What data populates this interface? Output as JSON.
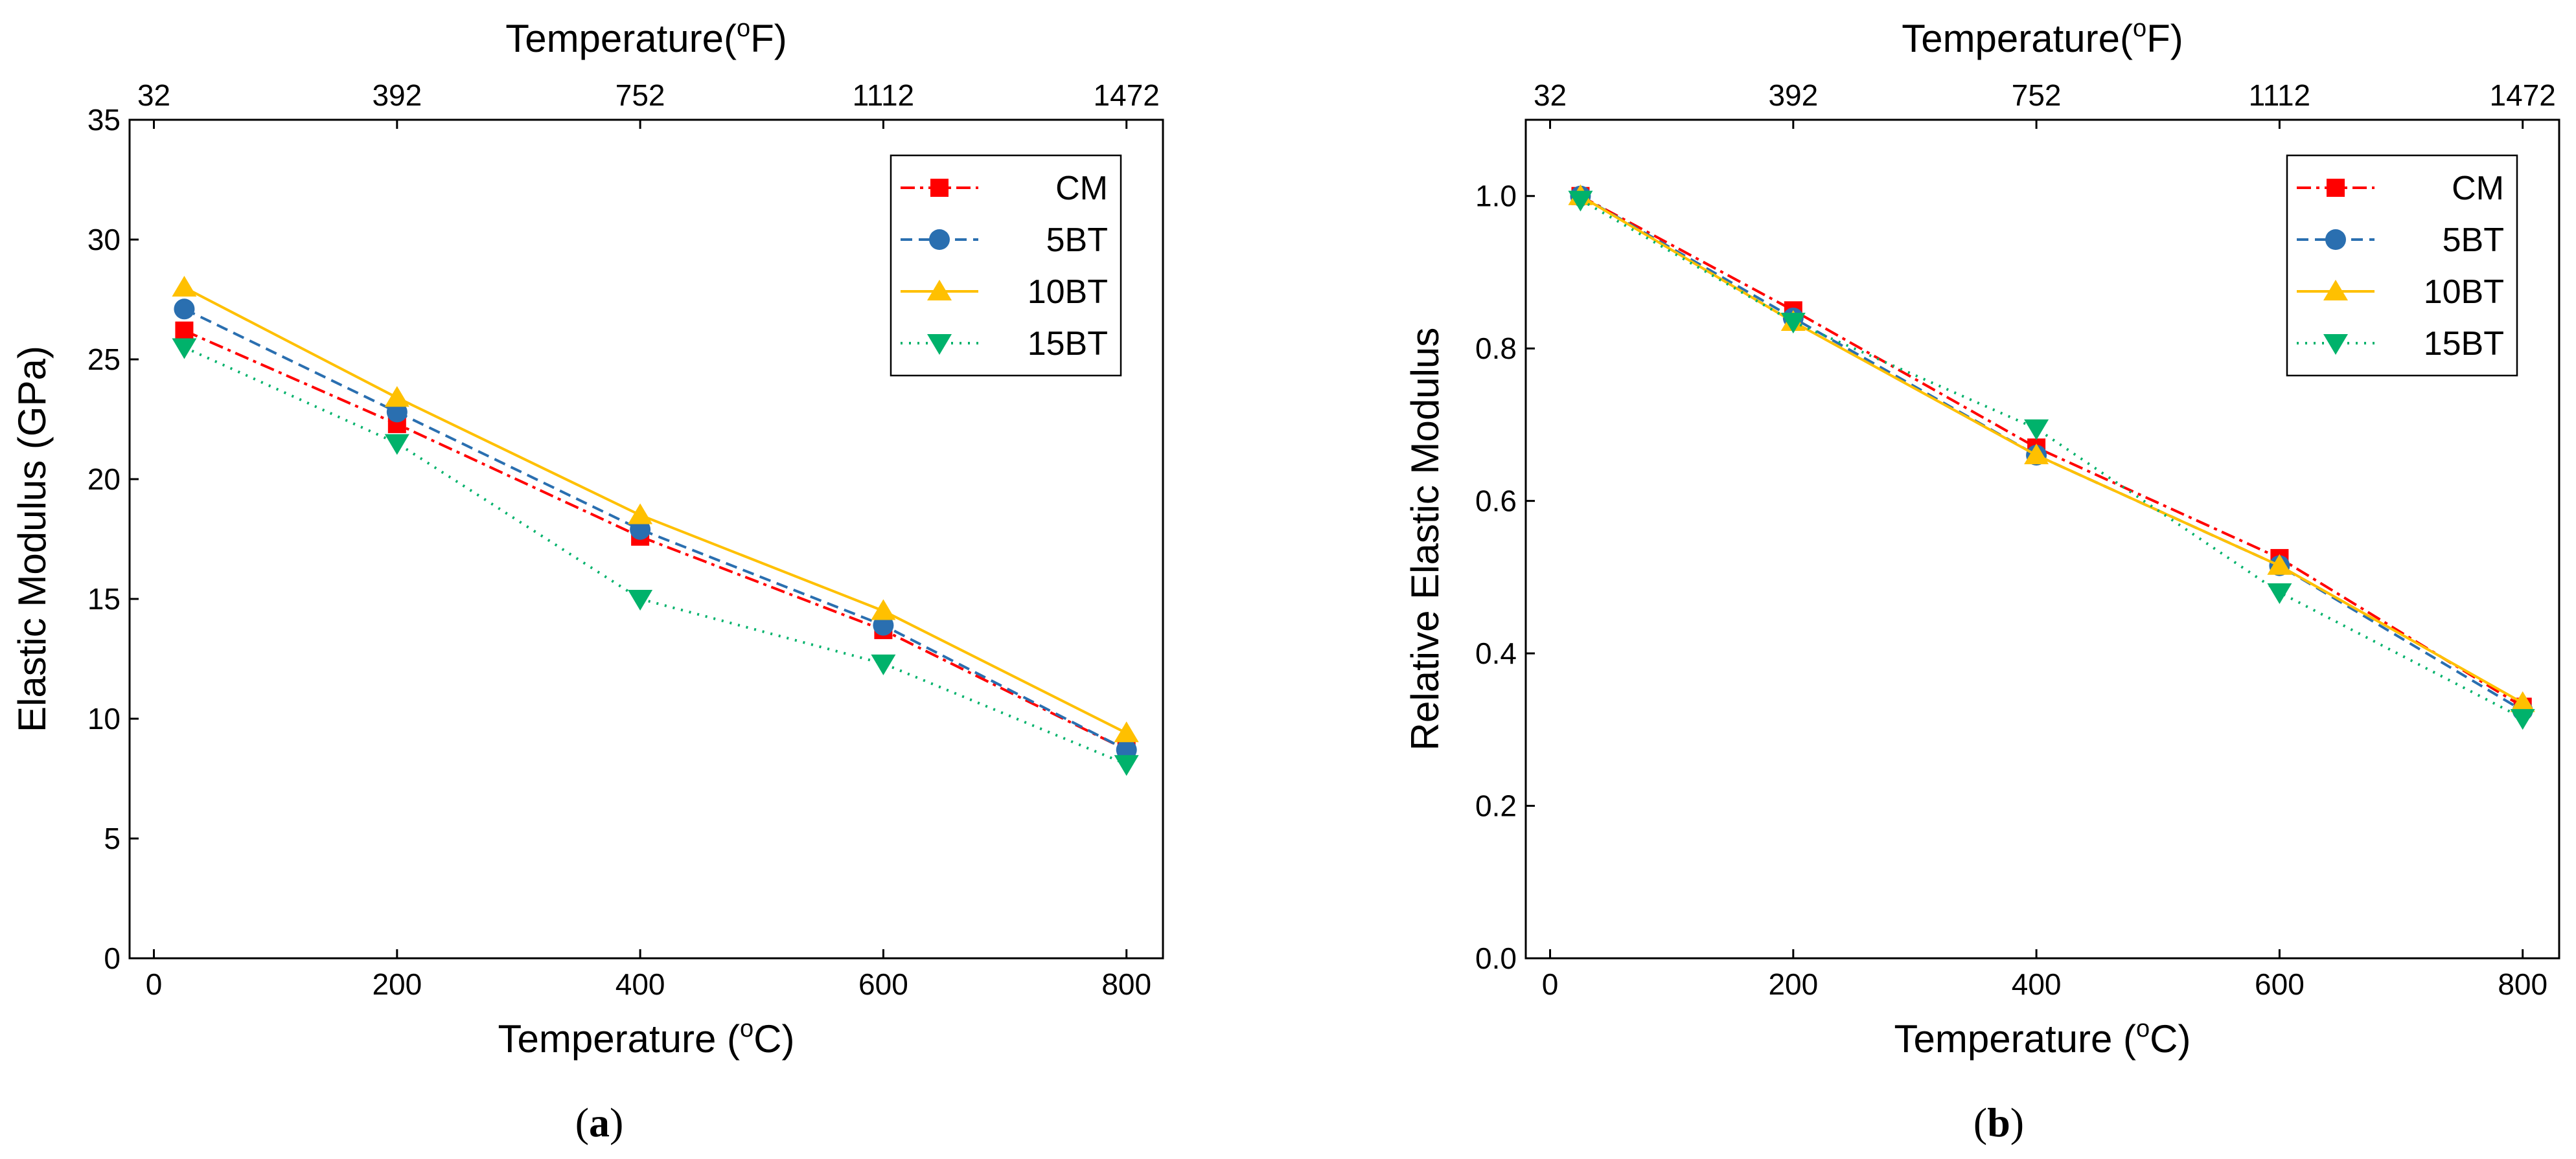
{
  "chart_data": [
    {
      "type": "line",
      "panel_label": "a",
      "xlabel_prefix": "Temperature (",
      "xlabel_degree": "o",
      "xlabel_unit": "C)",
      "x2label_prefix": "Temperature(",
      "x2label_degree": "o",
      "x2label_unit": "F)",
      "ylabel": "Elastic Modulus (GPa)",
      "xlim": [
        -20,
        830
      ],
      "ylim": [
        0,
        35
      ],
      "xticks": [
        0,
        200,
        400,
        600,
        800
      ],
      "yticks": [
        0,
        5,
        10,
        15,
        20,
        25,
        30,
        35
      ],
      "x2ticks_at": [
        0,
        200,
        400,
        600,
        800
      ],
      "x2tick_labels": [
        "32",
        "392",
        "752",
        "1112",
        "1472"
      ],
      "legend_position": "top-right",
      "x": [
        25,
        200,
        400,
        600,
        800
      ],
      "series": [
        {
          "name": "CM",
          "values": [
            26.2,
            22.3,
            17.6,
            13.7,
            8.7
          ],
          "color": "#ff0000",
          "dash": "22,8,5,8",
          "marker": "square"
        },
        {
          "name": "5BT",
          "values": [
            27.1,
            22.8,
            17.9,
            13.9,
            8.7
          ],
          "color": "#2a6fb0",
          "dash": "18,10",
          "marker": "circle"
        },
        {
          "name": "10BT",
          "values": [
            28.0,
            23.4,
            18.5,
            14.5,
            9.4
          ],
          "color": "#ffc000",
          "dash": "",
          "marker": "triangle-up"
        },
        {
          "name": "15BT",
          "values": [
            25.5,
            21.5,
            15.0,
            12.3,
            8.1
          ],
          "color": "#00b26b",
          "dash": "3,10",
          "marker": "triangle-down"
        }
      ]
    },
    {
      "type": "line",
      "panel_label": "b",
      "xlabel_prefix": "Temperature (",
      "xlabel_degree": "o",
      "xlabel_unit": "C)",
      "x2label_prefix": "Temperature(",
      "x2label_degree": "o",
      "x2label_unit": "F)",
      "ylabel": "Relative Elastic Modulus",
      "xlim": [
        -20,
        830
      ],
      "ylim": [
        0,
        1.1
      ],
      "xticks": [
        0,
        200,
        400,
        600,
        800
      ],
      "yticks": [
        0.0,
        0.2,
        0.4,
        0.6,
        0.8,
        1.0
      ],
      "ytick_labels": [
        "0.0",
        "0.2",
        "0.4",
        "0.6",
        "0.8",
        "1.0"
      ],
      "x2ticks_at": [
        0,
        200,
        400,
        600,
        800
      ],
      "x2tick_labels": [
        "32",
        "392",
        "752",
        "1112",
        "1472"
      ],
      "legend_position": "top-right",
      "x": [
        25,
        200,
        400,
        600,
        800
      ],
      "series": [
        {
          "name": "CM",
          "values": [
            1.0,
            0.85,
            0.67,
            0.525,
            0.33
          ],
          "color": "#ff0000",
          "dash": "22,8,5,8",
          "marker": "square"
        },
        {
          "name": "5BT",
          "values": [
            1.0,
            0.84,
            0.66,
            0.515,
            0.325
          ],
          "color": "#2a6fb0",
          "dash": "18,10",
          "marker": "circle"
        },
        {
          "name": "10BT",
          "values": [
            1.0,
            0.835,
            0.66,
            0.515,
            0.335
          ],
          "color": "#ffc000",
          "dash": "",
          "marker": "triangle-up"
        },
        {
          "name": "15BT",
          "values": [
            0.995,
            0.835,
            0.695,
            0.48,
            0.315
          ],
          "color": "#00b26b",
          "dash": "3,10",
          "marker": "triangle-down"
        }
      ]
    }
  ]
}
